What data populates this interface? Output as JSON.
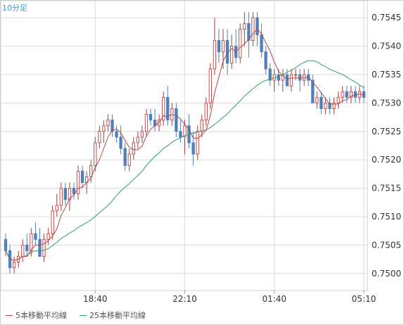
{
  "timeframe_label": "10分足",
  "colors": {
    "up": "#c0504d",
    "down": "#4f81bd",
    "ma5": "#b2474a",
    "ma25": "#2e9e6b",
    "grid": "#dcdcdc"
  },
  "chart_data": {
    "type": "candlestick",
    "title": "",
    "xlabel": "",
    "ylabel": "",
    "ylim": [
      0.7497,
      0.7548
    ],
    "y_ticks": [
      "0.7500",
      "0.7505",
      "0.7510",
      "0.7515",
      "0.7520",
      "0.7525",
      "0.7530",
      "0.7535",
      "0.7540",
      "0.7545"
    ],
    "x_ticks": [
      {
        "label": "18:40",
        "index": 21
      },
      {
        "label": "22:10",
        "index": 42
      },
      {
        "label": "01:40",
        "index": 63
      },
      {
        "label": "05:10",
        "index": 84
      }
    ],
    "legend": [
      {
        "label": "5本移動平均線",
        "color": "#b2474a"
      },
      {
        "label": "25本移動平均線",
        "color": "#2e9e6b"
      }
    ],
    "candles": [
      [
        0.7506,
        0.7507,
        0.7503,
        0.7504
      ],
      [
        0.7504,
        0.7505,
        0.75,
        0.7501
      ],
      [
        0.7501,
        0.7503,
        0.75,
        0.7502
      ],
      [
        0.7502,
        0.7504,
        0.7501,
        0.7503
      ],
      [
        0.7503,
        0.7506,
        0.7502,
        0.7505
      ],
      [
        0.7505,
        0.7507,
        0.7503,
        0.7504
      ],
      [
        0.7504,
        0.7508,
        0.7503,
        0.7507
      ],
      [
        0.7507,
        0.7509,
        0.7505,
        0.7506
      ],
      [
        0.7506,
        0.7508,
        0.7503,
        0.7503
      ],
      [
        0.7503,
        0.7507,
        0.7502,
        0.7506
      ],
      [
        0.7506,
        0.7508,
        0.7505,
        0.7507
      ],
      [
        0.7507,
        0.7512,
        0.7506,
        0.7511
      ],
      [
        0.7511,
        0.7514,
        0.751,
        0.7512
      ],
      [
        0.7512,
        0.7516,
        0.7511,
        0.7515
      ],
      [
        0.7515,
        0.7516,
        0.7512,
        0.7513
      ],
      [
        0.7513,
        0.7516,
        0.7511,
        0.7515
      ],
      [
        0.7515,
        0.7516,
        0.7513,
        0.7514
      ],
      [
        0.7514,
        0.7519,
        0.7513,
        0.7518
      ],
      [
        0.7518,
        0.7519,
        0.7515,
        0.7516
      ],
      [
        0.7516,
        0.7518,
        0.7514,
        0.7517
      ],
      [
        0.7517,
        0.752,
        0.7516,
        0.7519
      ],
      [
        0.7519,
        0.7524,
        0.7518,
        0.7523
      ],
      [
        0.7523,
        0.7526,
        0.7522,
        0.7525
      ],
      [
        0.7525,
        0.7527,
        0.7523,
        0.7526
      ],
      [
        0.7526,
        0.7528,
        0.7525,
        0.7527
      ],
      [
        0.7527,
        0.7528,
        0.7524,
        0.7525
      ],
      [
        0.7525,
        0.7526,
        0.7523,
        0.7524
      ],
      [
        0.7524,
        0.7526,
        0.7521,
        0.7522
      ],
      [
        0.7522,
        0.7523,
        0.7518,
        0.7519
      ],
      [
        0.7519,
        0.7522,
        0.7518,
        0.7521
      ],
      [
        0.7521,
        0.7524,
        0.752,
        0.7523
      ],
      [
        0.7523,
        0.7525,
        0.7522,
        0.7524
      ],
      [
        0.7524,
        0.7526,
        0.7523,
        0.7525
      ],
      [
        0.7525,
        0.7529,
        0.7524,
        0.7528
      ],
      [
        0.7528,
        0.7529,
        0.7526,
        0.7527
      ],
      [
        0.7527,
        0.7529,
        0.7525,
        0.7526
      ],
      [
        0.7526,
        0.7528,
        0.7525,
        0.7527
      ],
      [
        0.7527,
        0.7532,
        0.7526,
        0.7531
      ],
      [
        0.7531,
        0.7533,
        0.7526,
        0.7527
      ],
      [
        0.7527,
        0.753,
        0.7526,
        0.7529
      ],
      [
        0.7529,
        0.753,
        0.7524,
        0.7525
      ],
      [
        0.7525,
        0.7527,
        0.7523,
        0.7524
      ],
      [
        0.7524,
        0.7527,
        0.7521,
        0.7526
      ],
      [
        0.7526,
        0.7528,
        0.7522,
        0.7523
      ],
      [
        0.7523,
        0.7525,
        0.7519,
        0.7521
      ],
      [
        0.7521,
        0.7526,
        0.752,
        0.7525
      ],
      [
        0.7525,
        0.7528,
        0.7524,
        0.7527
      ],
      [
        0.7527,
        0.7531,
        0.7526,
        0.753
      ],
      [
        0.753,
        0.7537,
        0.7529,
        0.7536
      ],
      [
        0.7536,
        0.7545,
        0.7535,
        0.7541
      ],
      [
        0.7541,
        0.7543,
        0.7537,
        0.7539
      ],
      [
        0.7539,
        0.7543,
        0.7536,
        0.7541
      ],
      [
        0.7541,
        0.7543,
        0.7535,
        0.7537
      ],
      [
        0.7537,
        0.7542,
        0.7536,
        0.754
      ],
      [
        0.754,
        0.7543,
        0.7537,
        0.7538
      ],
      [
        0.7538,
        0.7544,
        0.7537,
        0.7543
      ],
      [
        0.7543,
        0.7546,
        0.754,
        0.7544
      ],
      [
        0.7544,
        0.7546,
        0.7538,
        0.7541
      ],
      [
        0.7541,
        0.7546,
        0.754,
        0.7545
      ],
      [
        0.7545,
        0.7546,
        0.754,
        0.7542
      ],
      [
        0.7542,
        0.7544,
        0.7538,
        0.7539
      ],
      [
        0.7539,
        0.754,
        0.7535,
        0.7536
      ],
      [
        0.7536,
        0.7537,
        0.7533,
        0.7534
      ],
      [
        0.7534,
        0.7536,
        0.7532,
        0.7535
      ],
      [
        0.7535,
        0.7536,
        0.7533,
        0.7534
      ],
      [
        0.7534,
        0.7536,
        0.7532,
        0.7535
      ],
      [
        0.7535,
        0.7536,
        0.7533,
        0.7533
      ],
      [
        0.7533,
        0.7536,
        0.7532,
        0.7535
      ],
      [
        0.7535,
        0.7536,
        0.7534,
        0.7535
      ],
      [
        0.7535,
        0.7536,
        0.7532,
        0.7534
      ],
      [
        0.7534,
        0.7536,
        0.7533,
        0.7535
      ],
      [
        0.7535,
        0.7536,
        0.7533,
        0.7534
      ],
      [
        0.7534,
        0.7535,
        0.753,
        0.753
      ],
      [
        0.753,
        0.7532,
        0.7529,
        0.7531
      ],
      [
        0.7531,
        0.7532,
        0.7528,
        0.7529
      ],
      [
        0.7529,
        0.7531,
        0.7528,
        0.753
      ],
      [
        0.753,
        0.7531,
        0.7528,
        0.7529
      ],
      [
        0.7529,
        0.7531,
        0.7528,
        0.753
      ],
      [
        0.753,
        0.7532,
        0.7529,
        0.7531
      ],
      [
        0.7531,
        0.7533,
        0.753,
        0.7532
      ],
      [
        0.7532,
        0.7533,
        0.753,
        0.7531
      ],
      [
        0.7531,
        0.7533,
        0.753,
        0.7532
      ],
      [
        0.7532,
        0.7533,
        0.753,
        0.7531
      ],
      [
        0.7531,
        0.7533,
        0.753,
        0.7532
      ],
      [
        0.7532,
        0.7533,
        0.753,
        0.7531
      ]
    ]
  }
}
